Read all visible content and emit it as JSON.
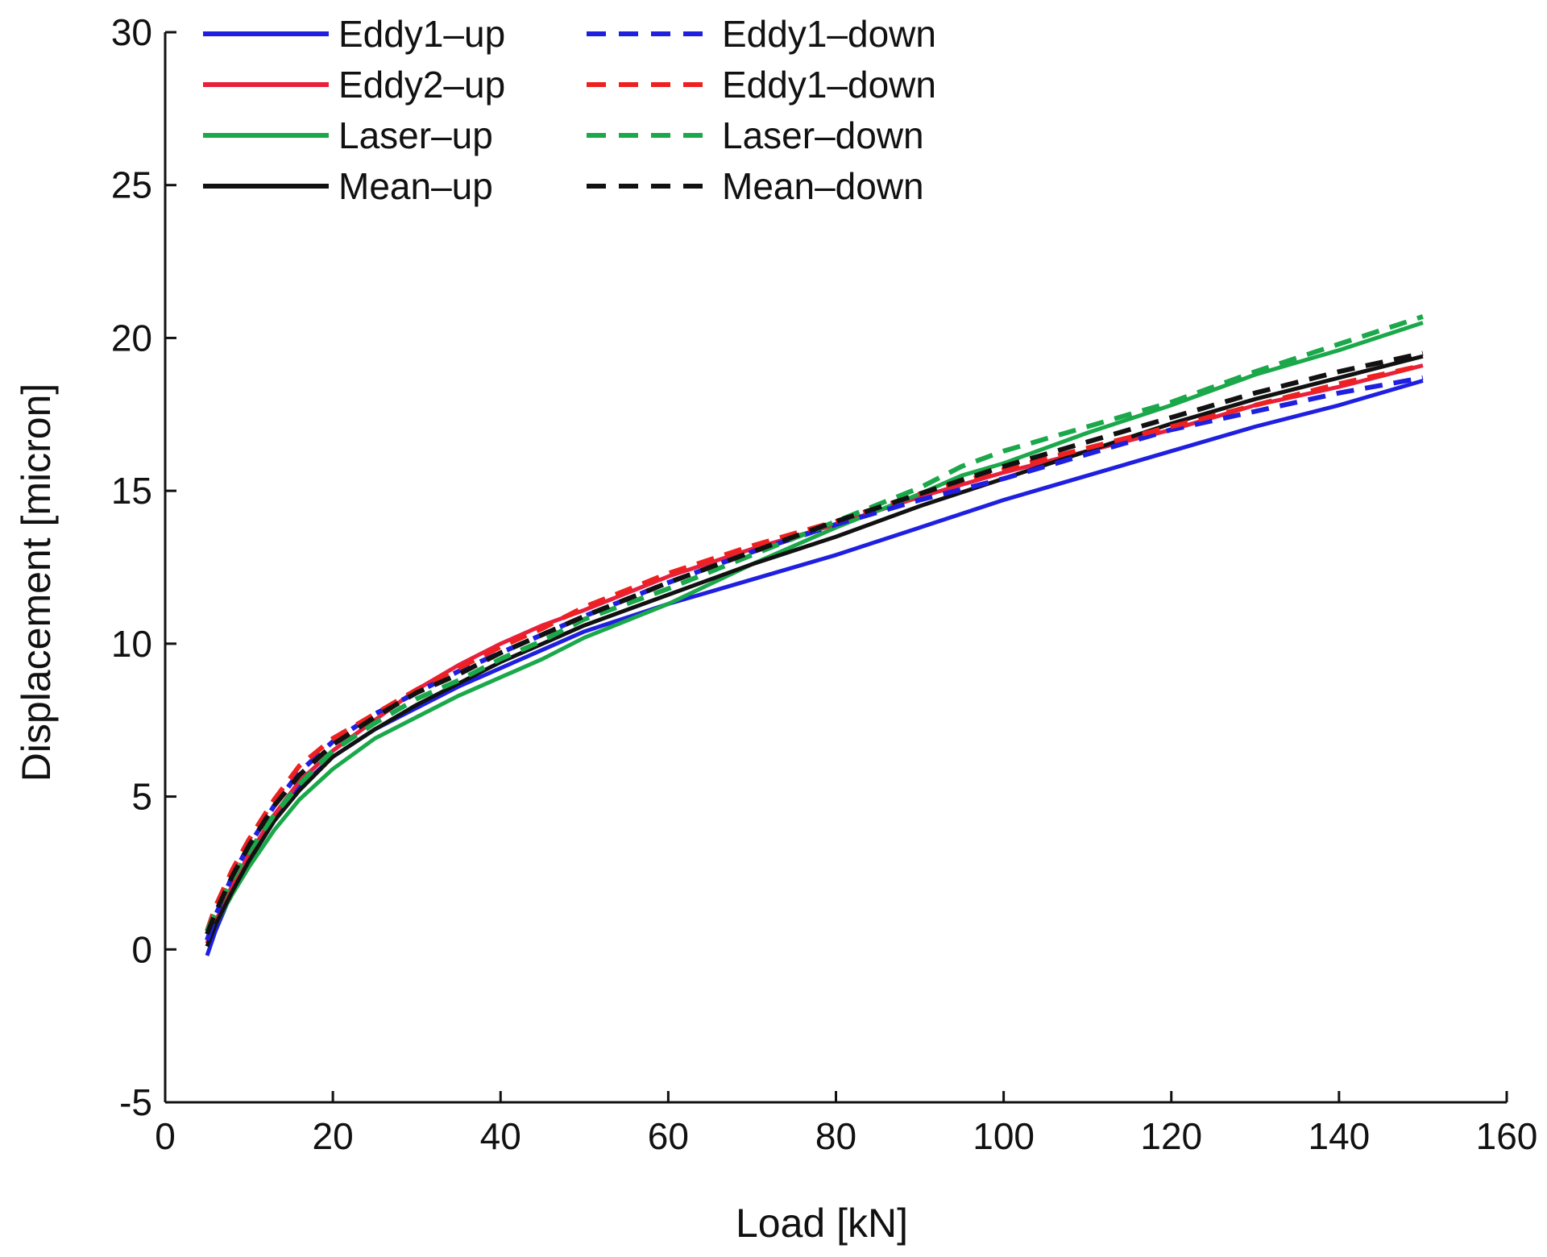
{
  "chart_data": {
    "type": "line",
    "title": "",
    "xlabel": "Load [kN]",
    "ylabel": "Displacement [micron]",
    "xlim": [
      0,
      160
    ],
    "ylim": [
      -5,
      30
    ],
    "x_ticks": [
      0,
      20,
      40,
      60,
      80,
      100,
      120,
      140,
      160
    ],
    "y_ticks": [
      -5,
      0,
      5,
      10,
      15,
      20,
      25,
      30
    ],
    "grid": false,
    "legend_position": "top-left, two columns",
    "series": [
      {
        "name": "Eddy1–up",
        "color": "#1f1fe0",
        "dash": "solid",
        "x": [
          5,
          6,
          8,
          10,
          13,
          16,
          20,
          25,
          30,
          35,
          40,
          45,
          50,
          60,
          70,
          80,
          90,
          100,
          110,
          120,
          130,
          140,
          150
        ],
        "y": [
          -0.2,
          0.6,
          1.9,
          2.9,
          4.2,
          5.3,
          6.3,
          7.2,
          7.9,
          8.6,
          9.2,
          9.8,
          10.4,
          11.3,
          12.1,
          12.9,
          13.8,
          14.7,
          15.5,
          16.3,
          17.1,
          17.8,
          18.6
        ]
      },
      {
        "name": "Eddy2–up",
        "color": "#e8203c",
        "dash": "solid",
        "x": [
          5,
          6,
          8,
          10,
          13,
          16,
          20,
          25,
          30,
          35,
          40,
          45,
          50,
          60,
          70,
          80,
          90,
          100,
          110,
          120,
          130,
          140,
          150
        ],
        "y": [
          0.2,
          0.9,
          2.1,
          3.1,
          4.4,
          5.5,
          6.5,
          7.5,
          8.5,
          9.3,
          10.0,
          10.6,
          11.1,
          12.2,
          13.1,
          13.9,
          14.8,
          15.6,
          16.3,
          17.0,
          17.8,
          18.4,
          19.1
        ]
      },
      {
        "name": "Laser–up",
        "color": "#1aa84a",
        "dash": "solid",
        "x": [
          5,
          6,
          8,
          10,
          13,
          16,
          20,
          25,
          30,
          35,
          40,
          45,
          50,
          60,
          70,
          80,
          90,
          95,
          100,
          110,
          120,
          130,
          140,
          150
        ],
        "y": [
          0.3,
          0.8,
          1.8,
          2.7,
          3.9,
          4.9,
          5.9,
          6.9,
          7.6,
          8.3,
          8.9,
          9.5,
          10.2,
          11.3,
          12.6,
          13.8,
          14.9,
          15.5,
          15.9,
          16.9,
          17.8,
          18.8,
          19.6,
          20.5
        ]
      },
      {
        "name": "Mean–up",
        "color": "#111111",
        "dash": "solid",
        "x": [
          5,
          6,
          8,
          10,
          13,
          16,
          20,
          25,
          30,
          35,
          40,
          45,
          50,
          60,
          70,
          80,
          90,
          100,
          110,
          120,
          130,
          140,
          150
        ],
        "y": [
          0.1,
          0.8,
          1.9,
          2.9,
          4.2,
          5.2,
          6.3,
          7.2,
          8.0,
          8.7,
          9.4,
          10.0,
          10.6,
          11.6,
          12.6,
          13.5,
          14.5,
          15.4,
          16.3,
          17.2,
          18.0,
          18.7,
          19.4
        ]
      },
      {
        "name": "Eddy1–down",
        "color": "#1f1fe0",
        "dash": "dashed",
        "x": [
          5,
          6,
          8,
          10,
          13,
          16,
          20,
          25,
          30,
          35,
          40,
          45,
          50,
          60,
          70,
          80,
          90,
          100,
          110,
          120,
          130,
          140,
          150
        ],
        "y": [
          0.3,
          1.1,
          2.4,
          3.4,
          4.7,
          5.8,
          6.8,
          7.7,
          8.4,
          9.1,
          9.7,
          10.3,
          10.9,
          12.0,
          13.0,
          13.9,
          14.7,
          15.4,
          16.2,
          17.0,
          17.6,
          18.2,
          18.7
        ]
      },
      {
        "name": "Eddy1–down",
        "color": "#ee2020",
        "dash": "dashed",
        "x": [
          5,
          6,
          8,
          10,
          13,
          16,
          20,
          25,
          30,
          35,
          40,
          45,
          50,
          60,
          70,
          80,
          90,
          100,
          110,
          120,
          130,
          140,
          150
        ],
        "y": [
          0.6,
          1.4,
          2.6,
          3.6,
          4.9,
          6.0,
          6.9,
          7.7,
          8.5,
          9.2,
          9.9,
          10.5,
          11.2,
          12.3,
          13.2,
          14.0,
          14.9,
          15.7,
          16.4,
          17.1,
          17.8,
          18.5,
          19.1
        ]
      },
      {
        "name": "Laser–down",
        "color": "#1aa84a",
        "dash": "dashed",
        "x": [
          5,
          6,
          8,
          10,
          13,
          16,
          20,
          25,
          30,
          35,
          40,
          45,
          50,
          60,
          70,
          80,
          90,
          95,
          100,
          110,
          120,
          130,
          140,
          150
        ],
        "y": [
          0.6,
          1.2,
          2.3,
          3.2,
          4.4,
          5.4,
          6.5,
          7.4,
          8.2,
          8.8,
          9.5,
          10.1,
          10.8,
          11.8,
          12.9,
          14.0,
          15.1,
          15.8,
          16.3,
          17.1,
          17.9,
          18.9,
          19.8,
          20.7
        ]
      },
      {
        "name": "Mean–down",
        "color": "#111111",
        "dash": "dashed",
        "x": [
          5,
          6,
          8,
          10,
          13,
          16,
          20,
          25,
          30,
          35,
          40,
          45,
          50,
          60,
          70,
          80,
          90,
          100,
          110,
          120,
          130,
          140,
          150
        ],
        "y": [
          0.5,
          1.2,
          2.4,
          3.4,
          4.7,
          5.7,
          6.7,
          7.6,
          8.4,
          9.0,
          9.7,
          10.3,
          10.9,
          12.0,
          13.0,
          14.0,
          14.9,
          15.8,
          16.6,
          17.4,
          18.2,
          18.9,
          19.5
        ]
      }
    ]
  }
}
